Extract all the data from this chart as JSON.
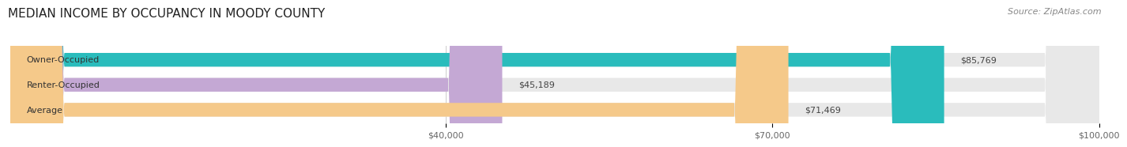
{
  "title": "MEDIAN INCOME BY OCCUPANCY IN MOODY COUNTY",
  "source": "Source: ZipAtlas.com",
  "categories": [
    "Owner-Occupied",
    "Renter-Occupied",
    "Average"
  ],
  "values": [
    85769,
    45189,
    71469
  ],
  "value_labels": [
    "$85,769",
    "$45,189",
    "$71,469"
  ],
  "bar_colors": [
    "#2abcbc",
    "#c4a8d4",
    "#f5c98a"
  ],
  "bar_bg_color": "#e8e8e8",
  "xlim": [
    0,
    100000
  ],
  "xticks": [
    40000,
    70000,
    100000
  ],
  "xtick_labels": [
    "$40,000",
    "$70,000",
    "$100,000"
  ],
  "title_fontsize": 11,
  "source_fontsize": 8,
  "label_fontsize": 8,
  "value_fontsize": 8
}
